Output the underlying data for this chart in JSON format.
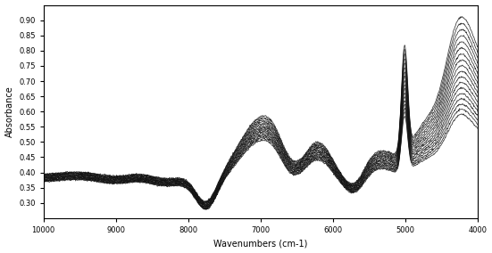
{
  "xlabel": "Wavenumbers (cm-1)",
  "ylabel": "Absorbance",
  "xlim": [
    10000,
    4000
  ],
  "ylim": [
    0.25,
    0.95
  ],
  "yticks": [
    0.3,
    0.35,
    0.4,
    0.45,
    0.5,
    0.55,
    0.6,
    0.65,
    0.7,
    0.75,
    0.8,
    0.85,
    0.9
  ],
  "xticks": [
    10000,
    9000,
    8000,
    7000,
    6000,
    5000,
    4000
  ],
  "n_spectra": 18,
  "line_color": "#111111",
  "line_alpha": 0.85,
  "line_width": 0.55,
  "background_color": "#ffffff"
}
